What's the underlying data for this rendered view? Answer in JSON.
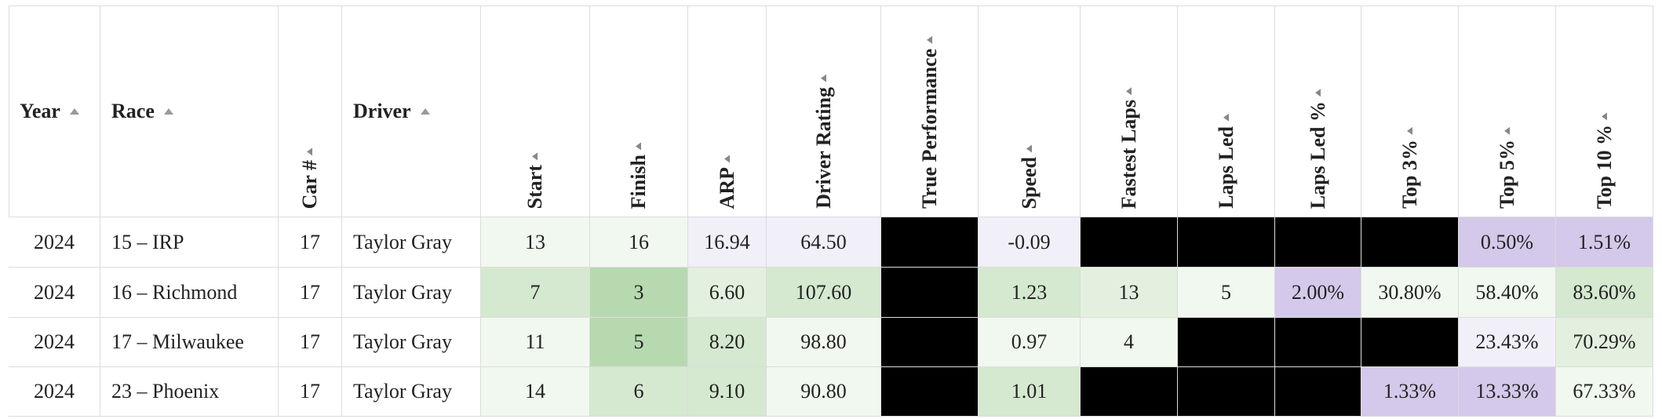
{
  "table": {
    "columns": [
      "Year",
      "Race",
      "Car #",
      "Driver",
      "Start",
      "Finish",
      "ARP",
      "Driver Rating",
      "True Performance",
      "Speed",
      "Fastest Laps",
      "Laps Led",
      "Laps Led %",
      "Top 3%",
      "Top 5%",
      "Top 10 %"
    ],
    "rows": [
      [
        "2024",
        "15 – IRP",
        "17",
        "Taylor Gray",
        "13",
        "16",
        "16.94",
        "64.50",
        null,
        "-0.09",
        null,
        null,
        null,
        null,
        "0.50%",
        "1.51%"
      ],
      [
        "2024",
        "16 – Richmond",
        "17",
        "Taylor Gray",
        "7",
        "3",
        "6.60",
        "107.60",
        null,
        "1.23",
        "13",
        "5",
        "2.00%",
        "30.80%",
        "58.40%",
        "83.60%"
      ],
      [
        "2024",
        "17 – Milwaukee",
        "17",
        "Taylor Gray",
        "11",
        "5",
        "8.20",
        "98.80",
        null,
        "0.97",
        "4",
        null,
        null,
        null,
        "23.43%",
        "70.29%"
      ],
      [
        "2024",
        "23 – Phoenix",
        "17",
        "Taylor Gray",
        "14",
        "6",
        "9.10",
        "90.80",
        null,
        "1.01",
        null,
        null,
        null,
        "1.33%",
        "13.33%",
        "67.33%"
      ]
    ],
    "cell_colors": [
      [
        "#ffffff",
        "#ffffff",
        "#ffffff",
        "#ffffff",
        "#f1f8ef",
        "#f1f8ef",
        "#f1eff8",
        "#f1eff8",
        "#000000",
        "#f1eff8",
        "#000000",
        "#000000",
        "#000000",
        "#000000",
        "#d4c9ea",
        "#d4c9ea"
      ],
      [
        "#ffffff",
        "#ffffff",
        "#ffffff",
        "#ffffff",
        "#d5e8d0",
        "#b7d9b0",
        "#e3f0df",
        "#d5e8d0",
        "#000000",
        "#d5e8d0",
        "#e3f0df",
        "#f1f8ef",
        "#d4c9ea",
        "#f1f8ef",
        "#f1f8ef",
        "#d5e8d0"
      ],
      [
        "#ffffff",
        "#ffffff",
        "#ffffff",
        "#ffffff",
        "#f1f8ef",
        "#b7d9b0",
        "#d5e8d0",
        "#f1f8ef",
        "#000000",
        "#f1f8ef",
        "#f1f8ef",
        "#000000",
        "#000000",
        "#000000",
        "#f1eff8",
        "#e3f0df"
      ],
      [
        "#ffffff",
        "#ffffff",
        "#ffffff",
        "#ffffff",
        "#f1f8ef",
        "#d5e8d0",
        "#d5e8d0",
        "#f1f8ef",
        "#000000",
        "#d5e8d0",
        "#000000",
        "#000000",
        "#000000",
        "#d4c9ea",
        "#d4c9ea",
        "#f1f8ef"
      ]
    ]
  }
}
